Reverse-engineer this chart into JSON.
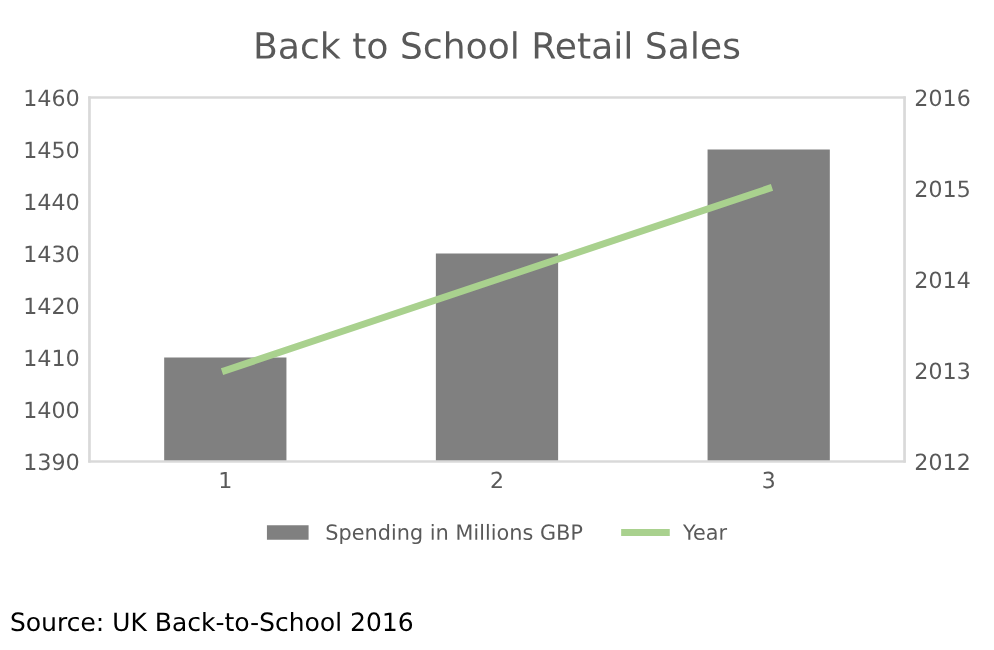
{
  "chart_data": {
    "type": "bar",
    "title": "Back to School Retail Sales",
    "categories": [
      "1",
      "2",
      "3"
    ],
    "series": [
      {
        "name": "Spending in Millions GBP",
        "color": "#808080",
        "values": [
          1410,
          1430,
          1450
        ]
      },
      {
        "name": "Year",
        "color": "#a9d18e",
        "values": [
          2013,
          2014,
          2015
        ],
        "type": "line",
        "axis": "y2"
      }
    ],
    "ylim": [
      1390,
      1460
    ],
    "yticks": [
      1390,
      1400,
      1410,
      1420,
      1430,
      1440,
      1450,
      1460
    ],
    "y2lim": [
      2012,
      2016
    ],
    "y2ticks": [
      2012,
      2013,
      2014,
      2015,
      2016
    ],
    "legend": "bottom",
    "grid": false,
    "annotations": [
      "Source: UK Back-to-School 2016"
    ]
  }
}
